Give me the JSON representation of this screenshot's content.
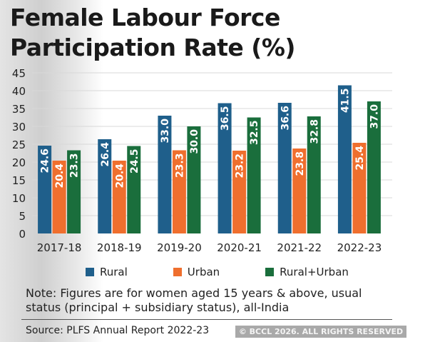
{
  "title_lines": [
    "Female Labour Force",
    "Participation Rate (%)"
  ],
  "watermark": "© BCCL 2026. ALL RIGHTS RESERVED",
  "note_lines": [
    "Note: Figures are for women aged 15 years & above, usual",
    "status (principal + subsidiary status), all-India"
  ],
  "source": "Source: PLFS Annual Report 2022-23",
  "chart_data": {
    "type": "bar",
    "title": "Female Labour Force Participation Rate (%)",
    "categories": [
      "2017-18",
      "2018-19",
      "2019-20",
      "2020-21",
      "2021-22",
      "2022-23"
    ],
    "series": [
      {
        "name": "Rural",
        "color": "#1f5f8b",
        "values": [
          24.6,
          26.4,
          33.0,
          36.5,
          36.6,
          41.5
        ]
      },
      {
        "name": "Urban",
        "color": "#ef6f2e",
        "values": [
          20.4,
          20.4,
          23.3,
          23.2,
          23.8,
          25.4
        ]
      },
      {
        "name": "Rural+Urban",
        "color": "#1a6e3c",
        "values": [
          23.3,
          24.5,
          30.0,
          32.5,
          32.8,
          37.0
        ]
      }
    ],
    "yticks": [
      0,
      5,
      10,
      15,
      20,
      25,
      30,
      35,
      40,
      45
    ],
    "ylim": [
      0,
      45
    ],
    "grid": true,
    "legend": "bottom"
  }
}
